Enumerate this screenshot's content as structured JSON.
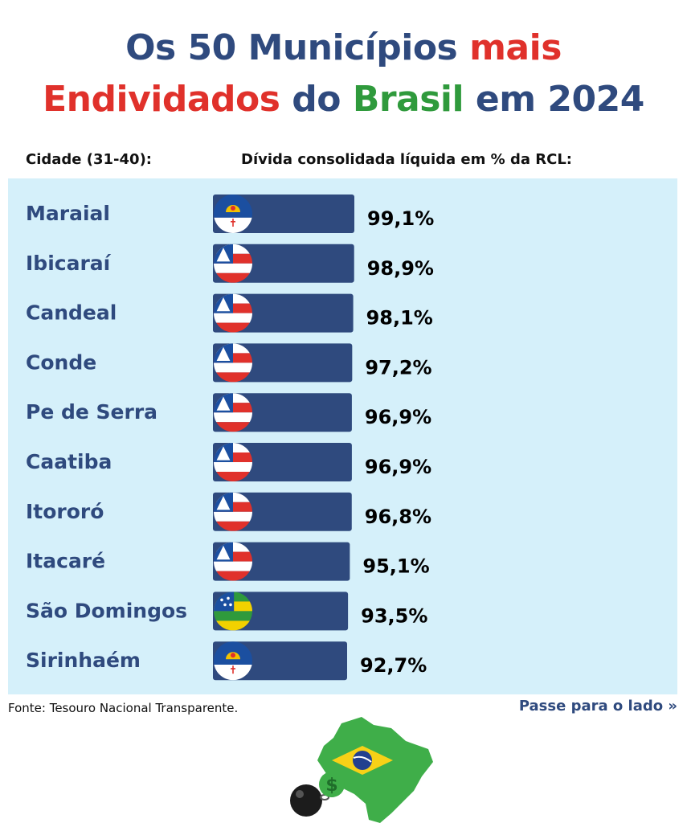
{
  "title": {
    "line1_a": "Os 50 Municípios ",
    "line1_b": "mais",
    "line2_a": "Endividados",
    "line2_b": " do ",
    "line2_c": "Brasil",
    "line2_d": " em 2024"
  },
  "headers": {
    "city": "Cidade (31-40):",
    "value": "Dívida consolidada líquida em % da RCL:"
  },
  "chart_data": {
    "type": "bar",
    "categories": [
      "Maraial",
      "Ibicaraí",
      "Candeal",
      "Conde",
      "Pe de Serra",
      "Caatiba",
      "Itororó",
      "Itacaré",
      "São Domingos",
      "Sirinhaém"
    ],
    "values": [
      99.1,
      98.9,
      98.1,
      97.2,
      96.9,
      96.9,
      96.8,
      95.1,
      93.5,
      92.7
    ],
    "value_labels": [
      "99,1%",
      "98,9%",
      "98,1%",
      "97,2%",
      "96,9%",
      "96,9%",
      "96,8%",
      "95,1%",
      "93,5%",
      "92,7%"
    ],
    "flags": [
      "pernambuco-flag-icon",
      "bahia-flag-icon",
      "bahia-flag-icon",
      "bahia-flag-icon",
      "bahia-flag-icon",
      "bahia-flag-icon",
      "bahia-flag-icon",
      "bahia-flag-icon",
      "sergipe-flag-icon",
      "pernambuco-flag-icon"
    ],
    "colors": {
      "bar": "#2f4a7e",
      "panel": "#d5f0fa",
      "city_text": "#2f4a7e"
    }
  },
  "footer": {
    "source": "Fonte: Tesouro Nacional Transparente.",
    "next": "Passe para o lado »"
  },
  "decor": {
    "currency_symbol": "$"
  }
}
